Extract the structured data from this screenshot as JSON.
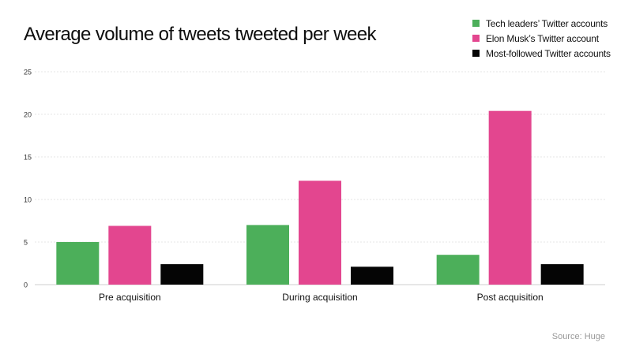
{
  "chart_data": {
    "type": "bar",
    "title": "Average volume of tweets tweeted per week",
    "categories": [
      "Pre acquisition",
      "During acquisition",
      "Post acquisition"
    ],
    "series": [
      {
        "name": "Tech leaders’ Twitter accounts",
        "color": "#4caf5a",
        "values": [
          5,
          7,
          3.5
        ]
      },
      {
        "name": "Elon Musk’s Twitter account",
        "color": "#e3468f",
        "values": [
          6.9,
          12.2,
          20.4
        ]
      },
      {
        "name": "Most-followed Twitter accounts",
        "color": "#050505",
        "values": [
          2.4,
          2.1,
          2.4
        ]
      }
    ],
    "yticks": [
      "0",
      "5",
      "10",
      "15",
      "20",
      "25"
    ],
    "ylim": [
      0,
      25
    ],
    "xlabel": "",
    "ylabel": "",
    "grid": true,
    "legend_position": "top-right",
    "source": "Source: Huge"
  }
}
